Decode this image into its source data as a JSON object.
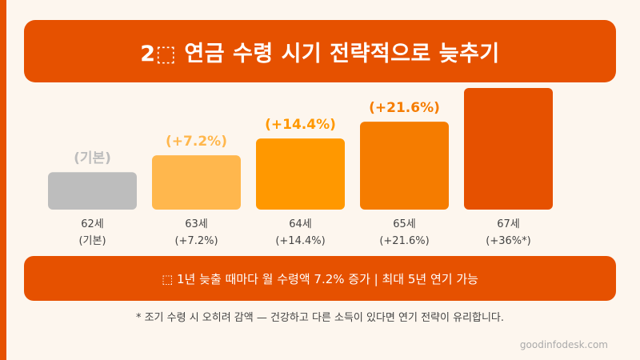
{
  "title": "2⬚  연금 수령 시기 전략적으로 늦추기",
  "note": "⬚  1년 늦출 때마다 월 수령액 7.2% 증가  |  최대 5년 연기 가능",
  "footnote": "* 조기 수령 시 오히려 감액 — 건강하고 다른 소득이 있다면 연기 전략이 유리합니다.",
  "site": "goodinfodesk.com",
  "colors": {
    "accent": "#e65100",
    "background": "#fdf6ee",
    "bars": [
      "#bdbdbd",
      "#ffb74d",
      "#ff9800",
      "#f57c00",
      "#e65100"
    ],
    "value_labels": [
      "#bdbdbd",
      "#ffb74d",
      "#ff9800",
      "#f57c00",
      "#e65100"
    ]
  },
  "chart_data": {
    "type": "bar",
    "categories": [
      "62세",
      "63세",
      "64세",
      "65세",
      "67세"
    ],
    "category_sublabels": [
      "(기본)",
      "(+7.2%)",
      "(+14.4%)",
      "(+21.6%)",
      "(+36%*)"
    ],
    "value_labels": [
      "(기본)",
      "(+7.2%)",
      "(+14.4%)",
      "(+21.6%)",
      ""
    ],
    "values": [
      0,
      7.2,
      14.4,
      21.6,
      36
    ],
    "ylim": [
      -16,
      36
    ],
    "grid": false,
    "legend": "none"
  }
}
